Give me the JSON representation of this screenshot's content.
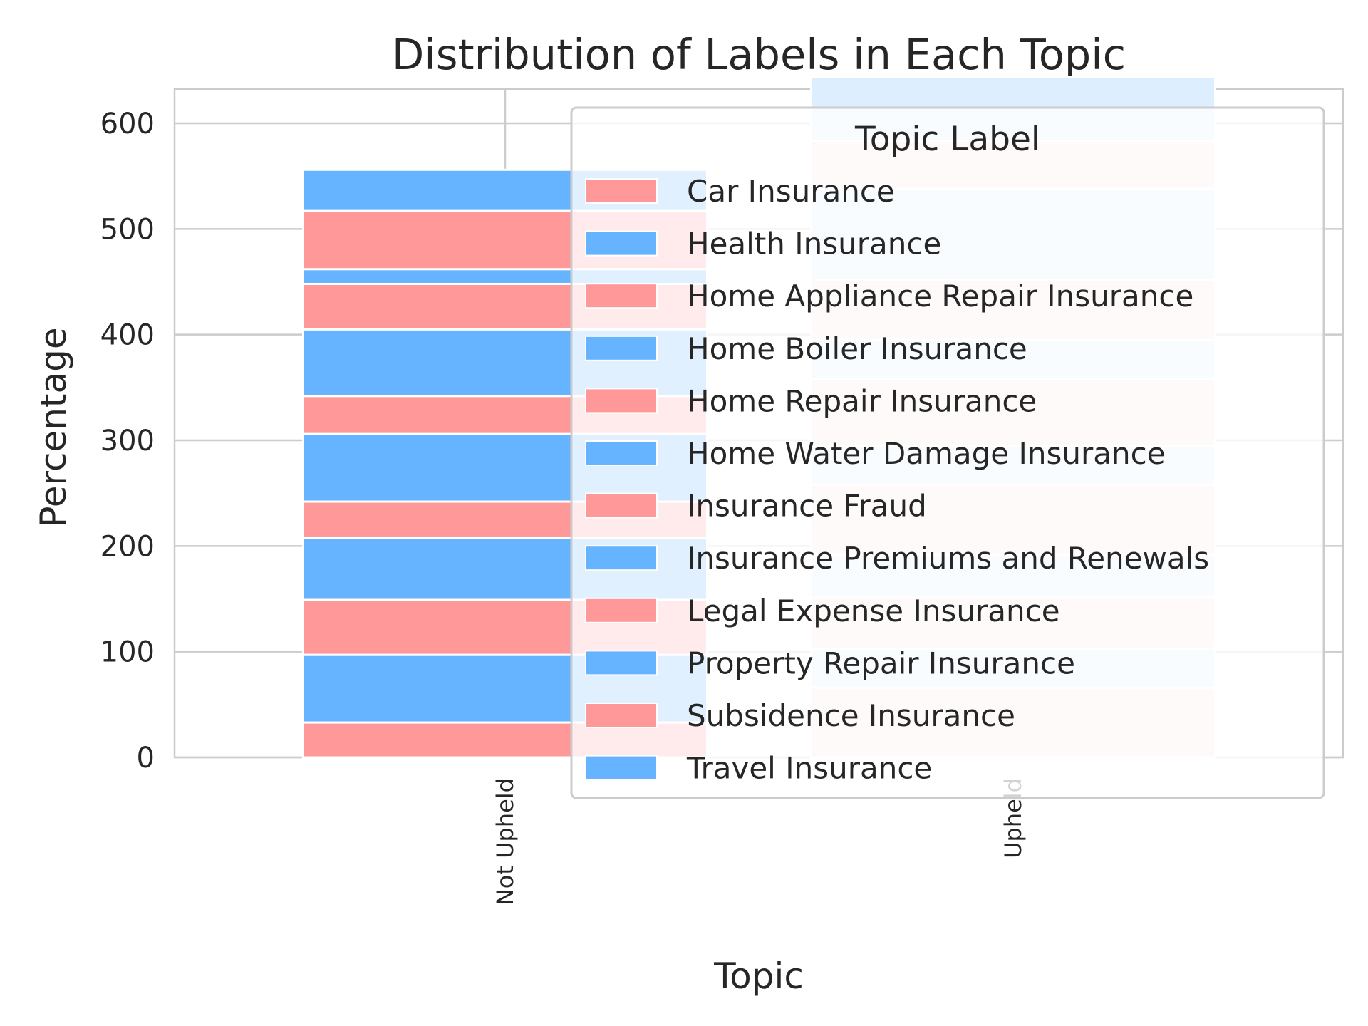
{
  "chart_data": {
    "type": "bar",
    "stacked": true,
    "title": "Distribution of Labels in Each Topic",
    "xlabel": "Topic",
    "ylabel": "Percentage",
    "categories": [
      "Not Upheld",
      "Upheld"
    ],
    "ylim": [
      0,
      600
    ],
    "yticks": [
      0,
      100,
      200,
      300,
      400,
      500,
      600
    ],
    "grid": true,
    "legend": {
      "title": "Topic Label",
      "placement": "upper-right"
    },
    "colors": {
      "Not Upheld": [
        "#ff9999",
        "#66b3ff"
      ],
      "Upheld": [
        "#ffe6e6",
        "#ddeeff"
      ]
    },
    "series": [
      {
        "name": "Car Insurance",
        "values": [
          33,
          66
        ]
      },
      {
        "name": "Health Insurance",
        "values": [
          64,
          37
        ]
      },
      {
        "name": "Home Appliance Repair Insurance",
        "values": [
          52,
          48
        ]
      },
      {
        "name": "Home Boiler Insurance",
        "values": [
          59,
          41
        ]
      },
      {
        "name": "Home Repair Insurance",
        "values": [
          34,
          66
        ]
      },
      {
        "name": "Home Water Damage Insurance",
        "values": [
          64,
          37
        ]
      },
      {
        "name": "Insurance Fraud",
        "values": [
          36,
          63
        ]
      },
      {
        "name": "Insurance Premiums and Renewals",
        "values": [
          63,
          37
        ]
      },
      {
        "name": "Legal Expense Insurance",
        "values": [
          43,
          57
        ]
      },
      {
        "name": "Property Repair Insurance",
        "values": [
          14,
          86
        ]
      },
      {
        "name": "Subsidence Insurance",
        "values": [
          55,
          45
        ]
      },
      {
        "name": "Travel Insurance",
        "values": [
          39,
          61
        ]
      }
    ]
  }
}
